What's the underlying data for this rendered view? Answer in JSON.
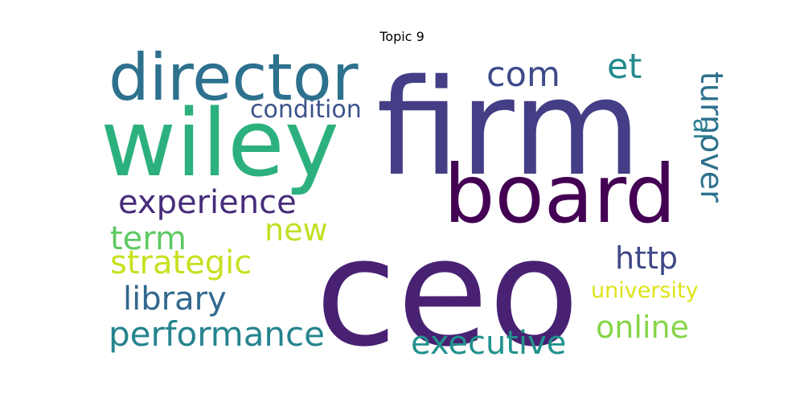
{
  "chart_data": {
    "type": "wordcloud",
    "title": "Topic 9",
    "words": [
      {
        "text": "ceo",
        "color": "#482173"
      },
      {
        "text": "firm",
        "color": "#433e85"
      },
      {
        "text": "board",
        "color": "#440154"
      },
      {
        "text": "wiley",
        "color": "#2cb17e"
      },
      {
        "text": "director",
        "color": "#2d718e"
      },
      {
        "text": "com",
        "color": "#3e4a89"
      },
      {
        "text": "et",
        "color": "#238a8d"
      },
      {
        "text": "turnover",
        "color": "#2d708e"
      },
      {
        "text": "al",
        "color": "#277f8e"
      },
      {
        "text": "condition",
        "color": "#3b528b"
      },
      {
        "text": "experience",
        "color": "#472d7b"
      },
      {
        "text": "new",
        "color": "#c2df23"
      },
      {
        "text": "term",
        "color": "#5ec962"
      },
      {
        "text": "strategic",
        "color": "#c8e020"
      },
      {
        "text": "http",
        "color": "#3f4788"
      },
      {
        "text": "library",
        "color": "#31688e"
      },
      {
        "text": "university",
        "color": "#dde318"
      },
      {
        "text": "performance",
        "color": "#25848e"
      },
      {
        "text": "online",
        "color": "#86d549"
      },
      {
        "text": "executive",
        "color": "#21918c"
      }
    ]
  }
}
